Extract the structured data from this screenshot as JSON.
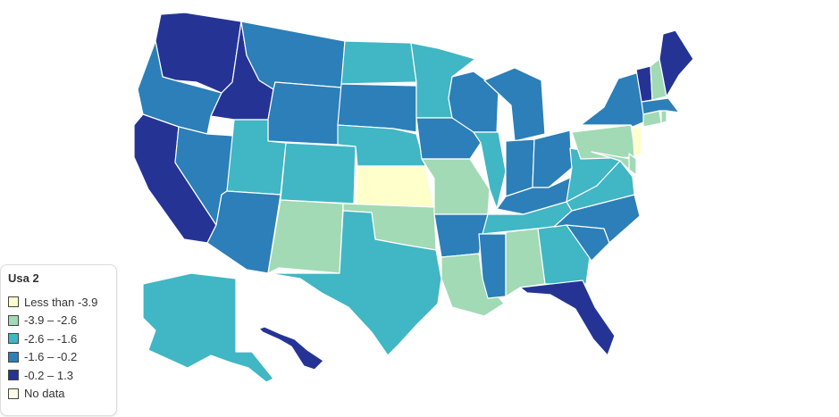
{
  "legend": {
    "title": "Usa 2",
    "items": [
      {
        "label": "Less than -3.9",
        "color": "#ffffcc"
      },
      {
        "label": "-3.9 – -2.6",
        "color": "#a1dab4"
      },
      {
        "label": "-2.6 – -1.6",
        "color": "#41b6c4"
      },
      {
        "label": "-1.6 – -0.2",
        "color": "#2c7fb8"
      },
      {
        "label": "-0.2 – 1.3",
        "color": "#253494"
      },
      {
        "label": "No data",
        "color": "#ffffe6"
      }
    ]
  },
  "states": {
    "WA": 4,
    "OR": 3,
    "CA": 4,
    "NV": 3,
    "ID": 4,
    "MT": 3,
    "WY": 3,
    "UT": 2,
    "AZ": 3,
    "NM": 1,
    "CO": 2,
    "ND": 2,
    "SD": 3,
    "NE": 2,
    "KS": 0,
    "OK": 1,
    "TX": 2,
    "MN": 2,
    "IA": 3,
    "MO": 1,
    "AR": 3,
    "LA": 1,
    "WI": 3,
    "IL": 2,
    "MI": 3,
    "IN": 3,
    "OH": 3,
    "KY": 3,
    "TN": 2,
    "MS": 3,
    "AL": 1,
    "GA": 2,
    "FL": 4,
    "SC": 3,
    "NC": 3,
    "VA": 2,
    "WV": 2,
    "MD": 1,
    "DE": 1,
    "PA": 1,
    "NJ": 0,
    "NY": 3,
    "CT": 1,
    "RI": 1,
    "MA": 3,
    "VT": 4,
    "NH": 1,
    "ME": 4,
    "AK": 2,
    "HI": 4
  }
}
